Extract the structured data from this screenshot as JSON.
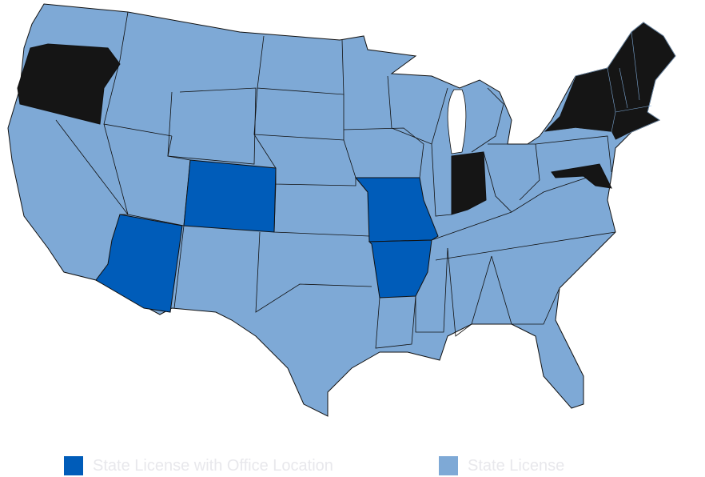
{
  "map": {
    "colors": {
      "state_license": "#7ea9d6",
      "office_location": "#005cb9",
      "other": "#151515",
      "border": "#111111"
    },
    "office_location_states": [
      "Colorado",
      "Arizona",
      "Missouri",
      "Arkansas"
    ],
    "dark_states": [
      "Oregon",
      "Indiana",
      "New York",
      "Vermont",
      "New Hampshire",
      "Maine",
      "Massachusetts",
      "Connecticut",
      "Rhode Island",
      "Maryland",
      "Delaware"
    ]
  },
  "legend": [
    {
      "label": "State License with Office Location",
      "color": "#005cb9"
    },
    {
      "label": "State License",
      "color": "#7ea9d6"
    }
  ]
}
